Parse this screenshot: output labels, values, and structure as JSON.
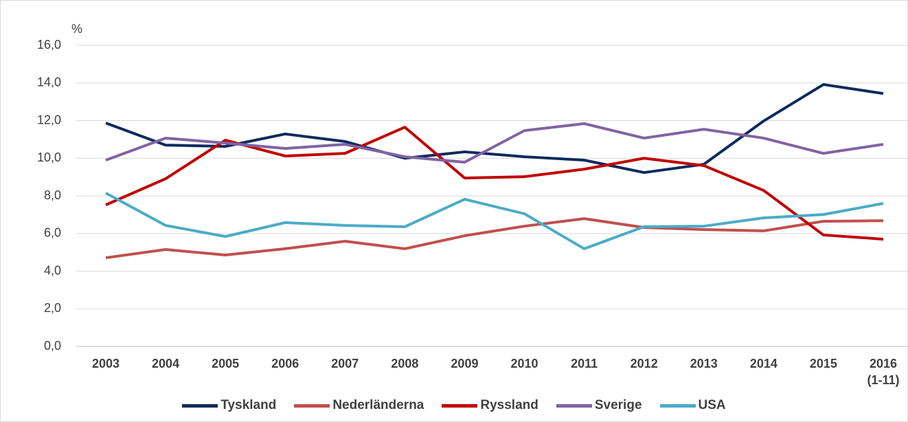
{
  "chart_data": {
    "type": "line",
    "y_label": "%",
    "categories": [
      "2003",
      "2004",
      "2005",
      "2006",
      "2007",
      "2008",
      "2009",
      "2010",
      "2011",
      "2012",
      "2013",
      "2014",
      "2015",
      "2016 (1-11)"
    ],
    "series": [
      {
        "name": "Tyskland",
        "color": "#0f2a5c",
        "values": [
          11.87,
          10.7,
          10.63,
          11.29,
          10.89,
          10.0,
          10.34,
          10.08,
          9.9,
          9.24,
          9.68,
          11.98,
          13.92,
          13.44
        ]
      },
      {
        "name": "Nederländerna",
        "color": "#c0504d",
        "values": [
          4.71,
          5.15,
          4.86,
          5.19,
          5.59,
          5.19,
          5.88,
          6.39,
          6.79,
          6.32,
          6.21,
          6.14,
          6.65,
          6.68
        ]
      },
      {
        "name": "Ryssland",
        "color": "#c00000",
        "values": [
          7.52,
          8.91,
          10.96,
          10.12,
          10.26,
          11.65,
          8.95,
          9.02,
          9.42,
          10.0,
          9.61,
          8.29,
          5.92,
          5.7
        ]
      },
      {
        "name": "Sverige",
        "color": "#8064a2",
        "values": [
          9.9,
          11.07,
          10.81,
          10.52,
          10.74,
          10.08,
          9.79,
          11.47,
          11.84,
          11.07,
          11.54,
          11.07,
          10.26,
          10.74
        ]
      },
      {
        "name": "USA",
        "color": "#4bacc6",
        "values": [
          8.15,
          6.43,
          5.84,
          6.58,
          6.43,
          6.36,
          7.82,
          7.05,
          5.19,
          6.36,
          6.39,
          6.83,
          7.01,
          7.6
        ]
      }
    ],
    "ylim": [
      0,
      16
    ],
    "yticks": [
      {
        "value": 0,
        "label": "0,0"
      },
      {
        "value": 2,
        "label": "2,0"
      },
      {
        "value": 4,
        "label": "4,0"
      },
      {
        "value": 6,
        "label": "6,0"
      },
      {
        "value": 8,
        "label": "8,0"
      },
      {
        "value": 10,
        "label": "10,0"
      },
      {
        "value": 12,
        "label": "12,0"
      },
      {
        "value": 14,
        "label": "14,0"
      },
      {
        "value": 16,
        "label": "16,0"
      }
    ],
    "grid": true,
    "legend": "bottom"
  }
}
